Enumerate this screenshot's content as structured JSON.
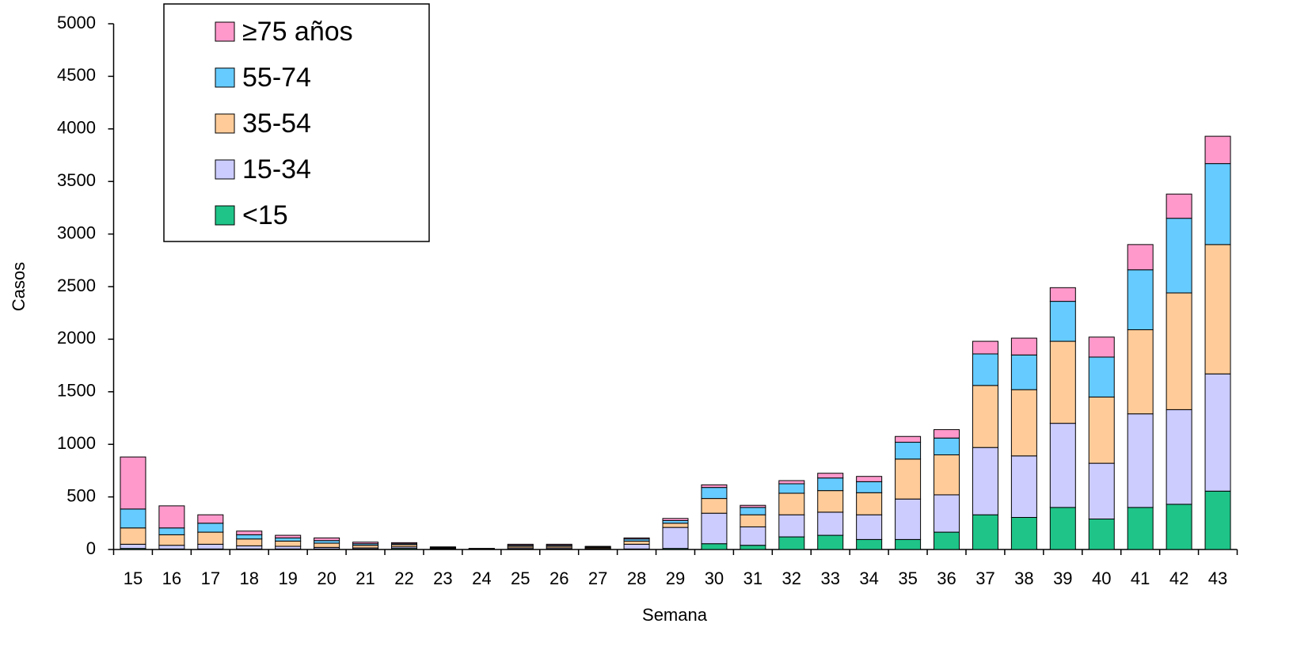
{
  "chart_data": {
    "type": "stacked_bar",
    "x_label": "Semana",
    "y_label": "Casos",
    "categories": [
      "15",
      "16",
      "17",
      "18",
      "19",
      "20",
      "21",
      "22",
      "23",
      "24",
      "25",
      "26",
      "27",
      "28",
      "29",
      "30",
      "31",
      "32",
      "33",
      "34",
      "35",
      "36",
      "37",
      "38",
      "39",
      "40",
      "41",
      "42",
      "43"
    ],
    "series": [
      {
        "name": "<15",
        "color": "#1fc489",
        "values": [
          10,
          5,
          5,
          5,
          5,
          5,
          5,
          10,
          5,
          2,
          5,
          5,
          3,
          5,
          10,
          55,
          40,
          120,
          135,
          95,
          95,
          165,
          330,
          305,
          400,
          290,
          400,
          430,
          555
        ]
      },
      {
        "name": "15-34",
        "color": "#ccccff",
        "values": [
          40,
          35,
          45,
          30,
          25,
          15,
          10,
          15,
          5,
          3,
          10,
          10,
          7,
          45,
          200,
          290,
          175,
          210,
          220,
          235,
          385,
          355,
          640,
          585,
          800,
          530,
          890,
          900,
          1115
        ]
      },
      {
        "name": "35-54",
        "color": "#ffcc99",
        "values": [
          155,
          100,
          115,
          65,
          50,
          40,
          25,
          20,
          5,
          2,
          15,
          15,
          10,
          30,
          40,
          140,
          115,
          205,
          205,
          210,
          380,
          380,
          590,
          630,
          780,
          630,
          800,
          1110,
          1230
        ]
      },
      {
        "name": "55-74",
        "color": "#66ccff",
        "values": [
          180,
          65,
          85,
          40,
          30,
          25,
          15,
          10,
          5,
          2,
          10,
          10,
          5,
          20,
          25,
          105,
          70,
          90,
          120,
          105,
          160,
          160,
          300,
          330,
          380,
          380,
          570,
          710,
          770
        ]
      },
      {
        "name": "≥75 años",
        "color": "#ff99cc",
        "values": [
          495,
          210,
          80,
          35,
          25,
          25,
          15,
          10,
          5,
          1,
          10,
          10,
          5,
          10,
          20,
          25,
          20,
          30,
          45,
          50,
          55,
          80,
          120,
          160,
          130,
          190,
          240,
          230,
          260
        ]
      }
    ],
    "ylim": [
      0,
      5000
    ],
    "yticks": [
      0,
      500,
      1000,
      1500,
      2000,
      2500,
      3000,
      3500,
      4000,
      4500,
      5000
    ],
    "legend": "upper-left",
    "grid": false
  }
}
